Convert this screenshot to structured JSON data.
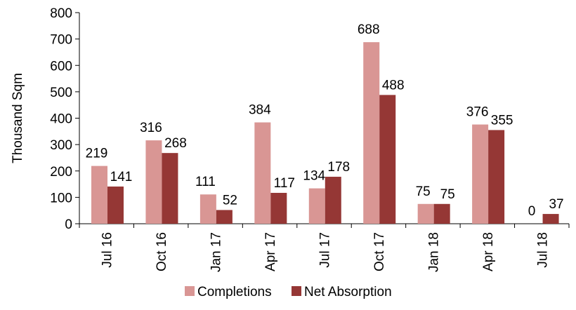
{
  "chart_data": {
    "type": "bar",
    "categories": [
      "Jul 16",
      "Oct 16",
      "Jan 17",
      "Apr 17",
      "Jul 17",
      "Oct 17",
      "Jan 18",
      "Apr 18",
      "Jul 18"
    ],
    "series": [
      {
        "name": "Completions",
        "color": "#d99694",
        "values": [
          219,
          316,
          111,
          384,
          134,
          688,
          75,
          376,
          0
        ]
      },
      {
        "name": "Net Absorption",
        "color": "#953735",
        "values": [
          141,
          268,
          52,
          117,
          178,
          488,
          75,
          355,
          37
        ]
      }
    ],
    "ylabel": "Thousand Sqm",
    "ylim": [
      0,
      800
    ],
    "yticks": [
      0,
      100,
      200,
      300,
      400,
      500,
      600,
      700,
      800
    ],
    "grid": false,
    "legend_position": "bottom"
  }
}
